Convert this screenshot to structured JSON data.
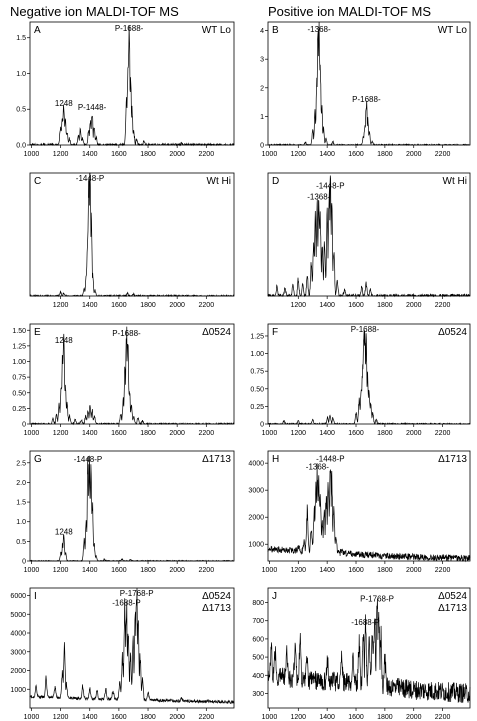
{
  "column_titles": [
    "Negative ion MALDI-TOF MS",
    "Positive ion MALDI-TOF MS"
  ],
  "chart_data": [
    {
      "type": "line",
      "panel": "A",
      "condition": "WT Lo",
      "x_ticks": [
        1000,
        1200,
        1400,
        1600,
        1800,
        2000,
        2200
      ],
      "xlim": [
        990,
        2390
      ],
      "y_ticks": [
        0,
        0.5,
        1,
        1.5
      ],
      "y_tick_labels": [
        "0.0",
        "0.5",
        "1.0",
        "1.5"
      ],
      "ylim": [
        0,
        1.72
      ],
      "noise": 0.02,
      "peaks": [
        [
          1200,
          0.25
        ],
        [
          1212,
          0.38
        ],
        [
          1222,
          0.5
        ],
        [
          1232,
          0.32
        ],
        [
          1244,
          0.18
        ],
        [
          1262,
          0.08
        ],
        [
          1322,
          0.12
        ],
        [
          1336,
          0.2
        ],
        [
          1350,
          0.09
        ],
        [
          1392,
          0.18
        ],
        [
          1404,
          0.3
        ],
        [
          1416,
          0.45
        ],
        [
          1430,
          0.22
        ],
        [
          1444,
          0.1
        ],
        [
          1652,
          0.58
        ],
        [
          1662,
          0.95
        ],
        [
          1670,
          1.55
        ],
        [
          1680,
          0.86
        ],
        [
          1690,
          0.45
        ],
        [
          1702,
          0.18
        ],
        [
          1722,
          0.08
        ],
        [
          1772,
          0.06
        ],
        [
          2030,
          0.03
        ]
      ],
      "annotations": [
        {
          "x": 1222,
          "y": 0.5,
          "text": "1248"
        },
        {
          "x": 1416,
          "y": 0.45,
          "text": "P-1448-"
        },
        {
          "x": 1670,
          "y": 1.55,
          "text": "P-1688-"
        }
      ]
    },
    {
      "type": "line",
      "panel": "B",
      "condition": "WT Lo",
      "x_ticks": [
        1000,
        1200,
        1400,
        1600,
        1800,
        2000,
        2200
      ],
      "xlim": [
        990,
        2390
      ],
      "y_ticks": [
        0,
        1,
        2,
        3,
        4
      ],
      "y_tick_labels": [
        "0",
        "1",
        "2",
        "3",
        "4"
      ],
      "ylim": [
        0,
        4.3
      ],
      "noise": 0.03,
      "peaks": [
        [
          1250,
          0.1
        ],
        [
          1300,
          0.5
        ],
        [
          1316,
          1.0
        ],
        [
          1328,
          2.0
        ],
        [
          1336,
          3.5
        ],
        [
          1344,
          3.85
        ],
        [
          1352,
          2.4
        ],
        [
          1362,
          1.3
        ],
        [
          1374,
          0.55
        ],
        [
          1392,
          0.2
        ],
        [
          1440,
          0.1
        ],
        [
          1650,
          0.25
        ],
        [
          1662,
          0.7
        ],
        [
          1672,
          1.4
        ],
        [
          1682,
          0.85
        ],
        [
          1692,
          0.4
        ],
        [
          1712,
          0.12
        ]
      ],
      "annotations": [
        {
          "x": 1344,
          "y": 3.85,
          "text": "-1368-"
        },
        {
          "x": 1672,
          "y": 1.4,
          "text": "P-1688-"
        }
      ]
    },
    {
      "type": "line",
      "panel": "C",
      "condition": "Wt Hi",
      "x_ticks": [
        1200,
        1400,
        1600,
        1800,
        2000,
        2200
      ],
      "xlim": [
        990,
        2390
      ],
      "y_ticks": [],
      "y_tick_labels": [],
      "ylim": [
        0,
        2.7
      ],
      "noise": 0.02,
      "peaks": [
        [
          1200,
          0.08
        ],
        [
          1222,
          0.06
        ],
        [
          1362,
          0.15
        ],
        [
          1376,
          0.45
        ],
        [
          1386,
          1.2
        ],
        [
          1394,
          2.4
        ],
        [
          1402,
          2.62
        ],
        [
          1410,
          1.5
        ],
        [
          1420,
          0.45
        ],
        [
          1436,
          0.12
        ],
        [
          1660,
          0.05
        ],
        [
          1700,
          0.04
        ]
      ],
      "annotations": [
        {
          "x": 1402,
          "y": 2.62,
          "text": "-1448-P"
        }
      ]
    },
    {
      "type": "line",
      "panel": "D",
      "condition": "Wt Hi",
      "x_ticks": [
        1200,
        1400,
        1600,
        1800,
        2000,
        2200
      ],
      "xlim": [
        990,
        2390
      ],
      "y_ticks": [],
      "y_tick_labels": [],
      "ylim": [
        0,
        1.25
      ],
      "noise": 0.02,
      "peaks": [
        [
          1052,
          0.1
        ],
        [
          1108,
          0.08
        ],
        [
          1162,
          0.1
        ],
        [
          1200,
          0.15
        ],
        [
          1230,
          0.12
        ],
        [
          1262,
          0.2
        ],
        [
          1290,
          0.3
        ],
        [
          1306,
          0.5
        ],
        [
          1318,
          0.72
        ],
        [
          1330,
          0.9
        ],
        [
          1342,
          0.95
        ],
        [
          1352,
          0.75
        ],
        [
          1366,
          0.5
        ],
        [
          1382,
          0.55
        ],
        [
          1400,
          0.78
        ],
        [
          1414,
          0.98
        ],
        [
          1422,
          1.06
        ],
        [
          1432,
          0.82
        ],
        [
          1446,
          0.45
        ],
        [
          1470,
          0.15
        ],
        [
          1520,
          0.06
        ],
        [
          1640,
          0.08
        ],
        [
          1670,
          0.12
        ],
        [
          1700,
          0.06
        ]
      ],
      "annotations": [
        {
          "x": 1342,
          "y": 0.95,
          "text": "-1368-"
        },
        {
          "x": 1422,
          "y": 1.06,
          "text": "-1448-P"
        }
      ]
    },
    {
      "type": "line",
      "panel": "E",
      "condition": "Δ0524",
      "x_ticks": [
        1000,
        1200,
        1400,
        1600,
        1800,
        2000,
        2200
      ],
      "xlim": [
        990,
        2390
      ],
      "y_ticks": [
        0,
        0.25,
        0.5,
        0.75,
        1,
        1.25,
        1.5
      ],
      "y_tick_labels": [
        "0",
        "0.25",
        "0.50",
        "0.75",
        "1.00",
        "1.25",
        "1.50"
      ],
      "ylim": [
        0,
        1.6
      ],
      "noise": 0.015,
      "peaks": [
        [
          1148,
          0.08
        ],
        [
          1172,
          0.15
        ],
        [
          1190,
          0.3
        ],
        [
          1204,
          0.55
        ],
        [
          1214,
          1.02
        ],
        [
          1222,
          1.25
        ],
        [
          1232,
          0.6
        ],
        [
          1244,
          0.32
        ],
        [
          1262,
          0.12
        ],
        [
          1300,
          0.08
        ],
        [
          1342,
          0.06
        ],
        [
          1372,
          0.12
        ],
        [
          1388,
          0.2
        ],
        [
          1402,
          0.28
        ],
        [
          1416,
          0.22
        ],
        [
          1432,
          0.12
        ],
        [
          1612,
          0.15
        ],
        [
          1630,
          0.35
        ],
        [
          1642,
          0.8
        ],
        [
          1652,
          1.36
        ],
        [
          1662,
          1.28
        ],
        [
          1672,
          0.55
        ],
        [
          1686,
          0.25
        ],
        [
          1702,
          0.12
        ],
        [
          1732,
          0.1
        ],
        [
          1762,
          0.05
        ]
      ],
      "annotations": [
        {
          "x": 1222,
          "y": 1.25,
          "text": "1248"
        },
        {
          "x": 1652,
          "y": 1.36,
          "text": "P-1688-"
        }
      ]
    },
    {
      "type": "line",
      "panel": "F",
      "condition": "Δ0524",
      "x_ticks": [
        1000,
        1200,
        1400,
        1600,
        1800,
        2000,
        2200
      ],
      "xlim": [
        990,
        2390
      ],
      "y_ticks": [
        0,
        0.25,
        0.5,
        0.75,
        1,
        1.25
      ],
      "y_tick_labels": [
        "0",
        "0.25",
        "0.50",
        "0.75",
        "1.00",
        "1.25"
      ],
      "ylim": [
        0,
        1.42
      ],
      "noise": 0.012,
      "peaks": [
        [
          1100,
          0.05
        ],
        [
          1200,
          0.04
        ],
        [
          1300,
          0.06
        ],
        [
          1402,
          0.08
        ],
        [
          1420,
          0.12
        ],
        [
          1440,
          0.08
        ],
        [
          1600,
          0.15
        ],
        [
          1622,
          0.32
        ],
        [
          1636,
          0.5
        ],
        [
          1646,
          0.8
        ],
        [
          1654,
          1.18
        ],
        [
          1662,
          1.28
        ],
        [
          1670,
          1.05
        ],
        [
          1680,
          0.72
        ],
        [
          1690,
          0.48
        ],
        [
          1702,
          0.28
        ],
        [
          1716,
          0.15
        ],
        [
          1740,
          0.06
        ]
      ],
      "annotations": [
        {
          "x": 1662,
          "y": 1.28,
          "text": "P-1688-"
        }
      ]
    },
    {
      "type": "line",
      "panel": "G",
      "condition": "Δ1713",
      "x_ticks": [
        1000,
        1200,
        1400,
        1600,
        1800,
        2000,
        2200
      ],
      "xlim": [
        990,
        2390
      ],
      "y_ticks": [
        0,
        0.5,
        1,
        1.5,
        2,
        2.5
      ],
      "y_tick_labels": [
        "0",
        "0.5",
        "1.0",
        "1.5",
        "2.0",
        "2.5"
      ],
      "ylim": [
        0,
        2.8
      ],
      "noise": 0.015,
      "peaks": [
        [
          1202,
          0.2
        ],
        [
          1214,
          0.38
        ],
        [
          1222,
          0.6
        ],
        [
          1234,
          0.2
        ],
        [
          1362,
          0.5
        ],
        [
          1376,
          1.0
        ],
        [
          1388,
          2.45
        ],
        [
          1398,
          2.3
        ],
        [
          1408,
          2.12
        ],
        [
          1418,
          1.3
        ],
        [
          1430,
          0.4
        ],
        [
          1444,
          0.12
        ],
        [
          1500,
          0.04
        ],
        [
          1620,
          0.05
        ],
        [
          1680,
          0.04
        ]
      ],
      "annotations": [
        {
          "x": 1222,
          "y": 0.6,
          "text": "1248"
        },
        {
          "x": 1388,
          "y": 2.45,
          "text": "-1448-P"
        }
      ]
    },
    {
      "type": "line",
      "panel": "H",
      "condition": "Δ1713",
      "x_ticks": [
        1000,
        1200,
        1400,
        1600,
        1800,
        2000,
        2200
      ],
      "xlim": [
        990,
        2390
      ],
      "y_ticks": [
        1000,
        2000,
        3000,
        4000
      ],
      "y_tick_labels": [
        "1000",
        "2000",
        "3000",
        "4000"
      ],
      "ylim": [
        380,
        4450
      ],
      "baseline": [
        [
          1000,
          820
        ],
        [
          1400,
          700
        ],
        [
          1800,
          560
        ],
        [
          2390,
          480
        ]
      ],
      "noise": 120,
      "peaks": [
        [
          1050,
          800
        ],
        [
          1100,
          700
        ],
        [
          1150,
          800
        ],
        [
          1204,
          900
        ],
        [
          1240,
          1100
        ],
        [
          1262,
          2150
        ],
        [
          1290,
          1500
        ],
        [
          1310,
          2200
        ],
        [
          1322,
          3000
        ],
        [
          1332,
          3650
        ],
        [
          1342,
          3050
        ],
        [
          1352,
          2700
        ],
        [
          1366,
          1800
        ],
        [
          1380,
          2000
        ],
        [
          1394,
          2650
        ],
        [
          1408,
          3350
        ],
        [
          1422,
          3950
        ],
        [
          1432,
          3100
        ],
        [
          1446,
          2300
        ],
        [
          1462,
          1200
        ],
        [
          1500,
          800
        ],
        [
          1560,
          700
        ]
      ],
      "annotations": [
        {
          "x": 1332,
          "y": 3650,
          "text": "-1368-"
        },
        {
          "x": 1422,
          "y": 3950,
          "text": "-1448-P"
        }
      ]
    },
    {
      "type": "line",
      "panel": "I",
      "condition": "Δ0524 Δ1713",
      "x_ticks": [
        1000,
        1200,
        1400,
        1600,
        1800,
        2000,
        2200
      ],
      "xlim": [
        990,
        2390
      ],
      "y_ticks": [
        1000,
        2000,
        3000,
        4000,
        5000,
        6000
      ],
      "y_tick_labels": [
        "1000",
        "2000",
        "3000",
        "4000",
        "5000",
        "6000"
      ],
      "ylim": [
        0,
        6400
      ],
      "baseline": [
        [
          1000,
          600
        ],
        [
          1600,
          450
        ],
        [
          2390,
          320
        ]
      ],
      "noise": 80,
      "peaks": [
        [
          1032,
          1100
        ],
        [
          1100,
          1500
        ],
        [
          1162,
          1100
        ],
        [
          1212,
          1800
        ],
        [
          1226,
          3250
        ],
        [
          1240,
          1200
        ],
        [
          1352,
          1100
        ],
        [
          1400,
          1000
        ],
        [
          1450,
          900
        ],
        [
          1510,
          950
        ],
        [
          1560,
          900
        ],
        [
          1606,
          1400
        ],
        [
          1624,
          2600
        ],
        [
          1640,
          4800
        ],
        [
          1652,
          5300
        ],
        [
          1664,
          3900
        ],
        [
          1680,
          2600
        ],
        [
          1698,
          3300
        ],
        [
          1712,
          4500
        ],
        [
          1722,
          5900
        ],
        [
          1732,
          4200
        ],
        [
          1746,
          2600
        ],
        [
          1762,
          1400
        ],
        [
          1800,
          800
        ],
        [
          2030,
          500
        ]
      ],
      "annotations": [
        {
          "x": 1652,
          "y": 5300,
          "text": "-1688-P"
        },
        {
          "x": 1722,
          "y": 5900,
          "text": "P-1768-P"
        }
      ]
    },
    {
      "type": "line",
      "panel": "J",
      "condition": "Δ0524 Δ1713",
      "x_ticks": [
        1000,
        1200,
        1400,
        1600,
        1800,
        2000,
        2200
      ],
      "xlim": [
        990,
        2390
      ],
      "y_ticks": [
        300,
        400,
        500,
        600,
        700,
        800
      ],
      "y_tick_labels": [
        "300",
        "400",
        "500",
        "600",
        "700",
        "800"
      ],
      "ylim": [
        220,
        880
      ],
      "baseline": [
        [
          1000,
          400
        ],
        [
          1300,
          370
        ],
        [
          1600,
          360
        ],
        [
          2000,
          320
        ],
        [
          2390,
          300
        ]
      ],
      "noise": 55,
      "peaks": [
        [
          1012,
          560
        ],
        [
          1040,
          520
        ],
        [
          1120,
          500
        ],
        [
          1178,
          560
        ],
        [
          1212,
          600
        ],
        [
          1260,
          480
        ],
        [
          1402,
          480
        ],
        [
          1500,
          470
        ],
        [
          1580,
          500
        ],
        [
          1622,
          560
        ],
        [
          1650,
          610
        ],
        [
          1666,
          660
        ],
        [
          1690,
          560
        ],
        [
          1712,
          620
        ],
        [
          1728,
          700
        ],
        [
          1746,
          790
        ],
        [
          1758,
          720
        ],
        [
          1772,
          600
        ],
        [
          1800,
          480
        ]
      ],
      "annotations": [
        {
          "x": 1666,
          "y": 660,
          "text": "-1688-P"
        },
        {
          "x": 1746,
          "y": 790,
          "text": "P-1768-P"
        }
      ]
    }
  ]
}
